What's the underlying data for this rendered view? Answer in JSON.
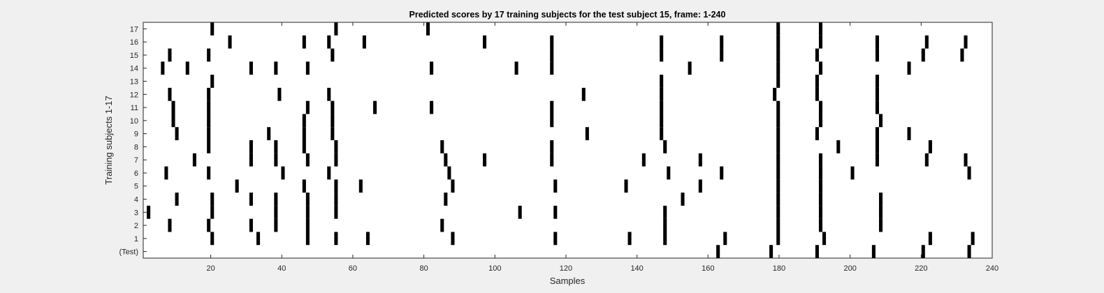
{
  "chart_data": {
    "type": "heatmap",
    "title": "Predicted scores by 17 training subjects for the test subject 15, frame: 1-240",
    "xlabel": "Samples",
    "ylabel": "Training subjects 1-17",
    "xlim": [
      1,
      240
    ],
    "xticks": [
      20,
      40,
      60,
      80,
      100,
      120,
      140,
      160,
      180,
      200,
      220,
      240
    ],
    "rows": [
      {
        "label": "(Test)",
        "marks": [
          163,
          178,
          191,
          207,
          221,
          234
        ]
      },
      {
        "label": "1",
        "marks": [
          20,
          33,
          47,
          55,
          64,
          88,
          117,
          138,
          148,
          165,
          180,
          193,
          223,
          235
        ]
      },
      {
        "label": "2",
        "marks": [
          8,
          19,
          31,
          38,
          47,
          85,
          148,
          180,
          192,
          209
        ]
      },
      {
        "label": "3",
        "marks": [
          2,
          20,
          38,
          47,
          55,
          107,
          117,
          148,
          180,
          192,
          209
        ]
      },
      {
        "label": "4",
        "marks": [
          10,
          20,
          31,
          38,
          47,
          55,
          86,
          153,
          180,
          192,
          209
        ]
      },
      {
        "label": "5",
        "marks": [
          27,
          46,
          55,
          62,
          88,
          117,
          137,
          158,
          180,
          192
        ]
      },
      {
        "label": "6",
        "marks": [
          7,
          19,
          40,
          53,
          87,
          149,
          164,
          180,
          192,
          201,
          234
        ]
      },
      {
        "label": "7",
        "marks": [
          15,
          31,
          38,
          47,
          55,
          86,
          97,
          116,
          142,
          158,
          180,
          192,
          208,
          222,
          233
        ]
      },
      {
        "label": "8",
        "marks": [
          19,
          31,
          38,
          46,
          55,
          85,
          116,
          148,
          180,
          197,
          208,
          223
        ]
      },
      {
        "label": "9",
        "marks": [
          10,
          19,
          36,
          46,
          54,
          126,
          147,
          180,
          191,
          208,
          217
        ]
      },
      {
        "label": "10",
        "marks": [
          9,
          19,
          46,
          54,
          116,
          147,
          180,
          192,
          209
        ]
      },
      {
        "label": "11",
        "marks": [
          9,
          19,
          47,
          54,
          66,
          82,
          116,
          147,
          180,
          192,
          208
        ]
      },
      {
        "label": "12",
        "marks": [
          8,
          19,
          39,
          53,
          125,
          147,
          179,
          191,
          208
        ]
      },
      {
        "label": "13",
        "marks": [
          20,
          147,
          180,
          191,
          208
        ]
      },
      {
        "label": "14",
        "marks": [
          6,
          13,
          31,
          38,
          47,
          82,
          106,
          116,
          155,
          180,
          192,
          217
        ]
      },
      {
        "label": "15",
        "marks": [
          8,
          19,
          54,
          116,
          147,
          164,
          180,
          191,
          208,
          221,
          232
        ]
      },
      {
        "label": "16",
        "marks": [
          25,
          46,
          53,
          63,
          97,
          116,
          147,
          164,
          180,
          192,
          208,
          222,
          233
        ]
      },
      {
        "label": "17",
        "marks": [
          20,
          55,
          81,
          180,
          192
        ]
      }
    ],
    "grid": false,
    "colors": {
      "mark": "#000000",
      "plot_bg": "#ffffff",
      "figure_bg": "#f0f0f0"
    }
  }
}
